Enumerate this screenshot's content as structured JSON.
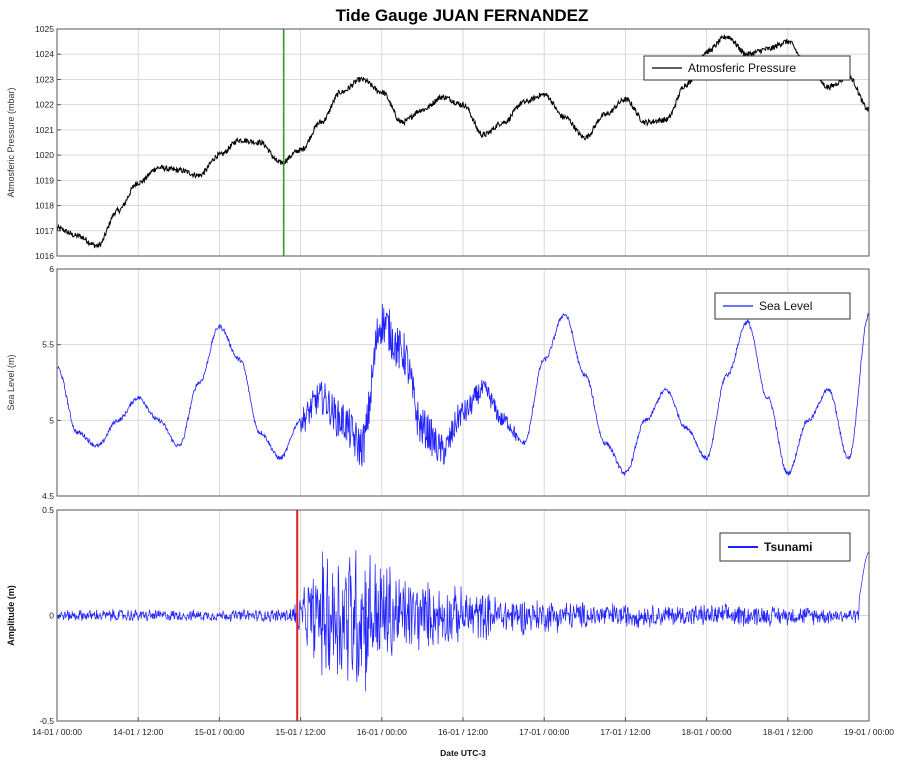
{
  "chart_data": [
    {
      "type": "line",
      "title": "Tide Gauge JUAN FERNANDEZ",
      "ylabel": "Atmosferic Pressure (mbar)",
      "ylim": [
        1016,
        1025
      ],
      "yticks": [
        "1016",
        "1017",
        "1018",
        "1019",
        "1020",
        "1021",
        "1022",
        "1023",
        "1024",
        "1025"
      ],
      "series": [
        {
          "name": "Atmosferic Pressure",
          "color": "#000000",
          "x_hours": [
            0,
            3,
            6,
            9,
            12,
            15,
            18,
            21,
            24,
            27,
            30,
            33,
            36,
            39,
            42,
            45,
            48,
            51,
            54,
            57,
            60,
            63,
            66,
            69,
            72,
            75,
            78,
            81,
            84,
            87,
            90,
            93,
            96,
            99,
            102,
            105,
            108,
            111,
            114,
            117,
            120
          ],
          "values": [
            1017.1,
            1016.8,
            1016.4,
            1017.8,
            1018.9,
            1019.5,
            1019.4,
            1019.2,
            1020.0,
            1020.6,
            1020.5,
            1019.7,
            1020.2,
            1021.3,
            1022.5,
            1023.0,
            1022.5,
            1021.3,
            1021.8,
            1022.3,
            1022.0,
            1020.8,
            1021.3,
            1022.1,
            1022.4,
            1021.5,
            1020.7,
            1021.6,
            1022.2,
            1021.3,
            1021.4,
            1022.8,
            1024.1,
            1024.7,
            1024.0,
            1024.2,
            1024.5,
            1023.5,
            1022.7,
            1023.1,
            1021.8
          ]
        }
      ],
      "marker_line": {
        "x_hours": 33.5,
        "color": "#2a9d2a"
      },
      "legend": "top-right",
      "grid": true
    },
    {
      "type": "line",
      "ylabel": "Sea Level (m)",
      "ylim": [
        4.5,
        6
      ],
      "yticks": [
        "4.5",
        "5",
        "5.5",
        "6"
      ],
      "series": [
        {
          "name": "Sea Level",
          "color": "#1f1fff",
          "x_hours": [
            0,
            3,
            6,
            9,
            12,
            15,
            18,
            21,
            24,
            27,
            30,
            33,
            36,
            39,
            42,
            45,
            48,
            51,
            54,
            57,
            60,
            63,
            66,
            69,
            72,
            75,
            78,
            81,
            84,
            87,
            90,
            93,
            96,
            99,
            102,
            105,
            108,
            111,
            114,
            117,
            120
          ],
          "values": [
            5.35,
            4.92,
            4.83,
            5.0,
            5.15,
            5.0,
            4.83,
            5.25,
            5.62,
            5.4,
            4.92,
            4.75,
            5.0,
            5.15,
            5.0,
            4.83,
            5.65,
            5.45,
            4.95,
            4.8,
            5.05,
            5.2,
            5.0,
            4.85,
            5.4,
            5.7,
            5.3,
            4.85,
            4.65,
            5.0,
            5.2,
            4.95,
            4.75,
            5.3,
            5.65,
            5.15,
            4.65,
            5.0,
            5.2,
            4.75,
            5.7
          ]
        }
      ],
      "legend": "top-right",
      "grid": true
    },
    {
      "type": "line",
      "xlabel": "Date UTC-3",
      "ylabel": "Amplitude (m)",
      "ylim": [
        -0.5,
        0.5
      ],
      "yticks": [
        "-0.5",
        "0",
        "0.5"
      ],
      "x_tick_labels": [
        "14-01 / 00:00",
        "14-01 / 12:00",
        "15-01 / 00:00",
        "15-01 / 12:00",
        "16-01 / 00:00",
        "16-01 / 12:00",
        "17-01 / 00:00",
        "17-01 / 12:00",
        "18-01 / 00:00",
        "18-01 / 12:00",
        "19-01 / 00:00"
      ],
      "xlim_hours": [
        0,
        120
      ],
      "series": [
        {
          "name": "Tsunami",
          "color": "#1f1fff",
          "envelope_x_hours": [
            0,
            10,
            20,
            30,
            34,
            36,
            38,
            40,
            44,
            48,
            52,
            56,
            60,
            66,
            72,
            80,
            90,
            100,
            110,
            118,
            120
          ],
          "envelope_amplitude": [
            0.03,
            0.035,
            0.03,
            0.035,
            0.04,
            0.12,
            0.25,
            0.38,
            0.45,
            0.32,
            0.22,
            0.17,
            0.15,
            0.11,
            0.09,
            0.07,
            0.06,
            0.06,
            0.05,
            0.04,
            0.3
          ]
        }
      ],
      "marker_line": {
        "x_hours": 35.5,
        "color": "#e02020"
      },
      "legend": "top-right",
      "grid": true
    }
  ]
}
